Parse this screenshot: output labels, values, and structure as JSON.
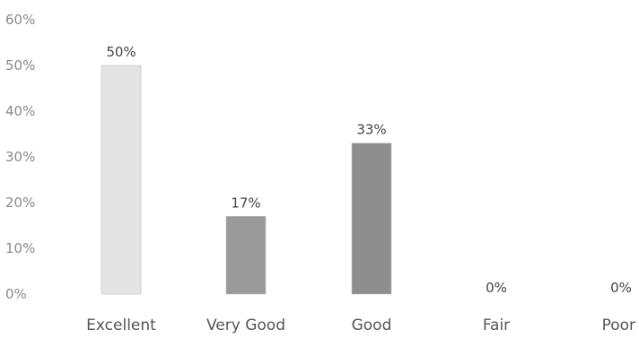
{
  "chart_data": {
    "type": "bar",
    "categories": [
      "Excellent",
      "Very Good",
      "Good",
      "Fair",
      "Poor"
    ],
    "values": [
      50,
      17,
      33,
      0,
      0
    ],
    "data_labels": [
      "50%",
      "17%",
      "33%",
      "0%",
      "0%"
    ],
    "y_ticks": [
      "0%",
      "10%",
      "20%",
      "30%",
      "40%",
      "50%",
      "60%"
    ],
    "ylim": [
      0,
      60
    ],
    "grid": false,
    "bar_colors": [
      "#e4e4e4",
      "#9a9a9a",
      "#8e8e8e",
      "#cccccc",
      "#cccccc"
    ]
  }
}
